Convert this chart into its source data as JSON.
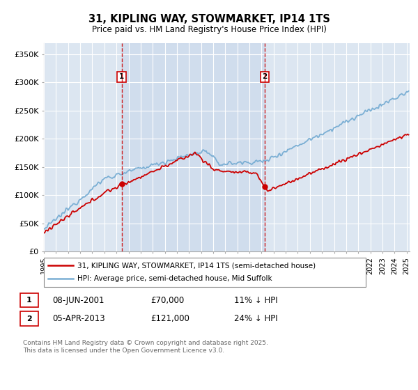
{
  "title": "31, KIPLING WAY, STOWMARKET, IP14 1TS",
  "subtitle": "Price paid vs. HM Land Registry's House Price Index (HPI)",
  "legend_line1": "31, KIPLING WAY, STOWMARKET, IP14 1TS (semi-detached house)",
  "legend_line2": "HPI: Average price, semi-detached house, Mid Suffolk",
  "footer": "Contains HM Land Registry data © Crown copyright and database right 2025.\nThis data is licensed under the Open Government Licence v3.0.",
  "annotation1": {
    "label": "1",
    "date": "08-JUN-2001",
    "price": "£70,000",
    "hpi": "11% ↓ HPI"
  },
  "annotation2": {
    "label": "2",
    "date": "05-APR-2013",
    "price": "£121,000",
    "hpi": "24% ↓ HPI"
  },
  "red_color": "#cc0000",
  "blue_color": "#7bafd4",
  "shade_color": "#dce6f1",
  "background_color": "#dce6f1",
  "vline_color": "#cc0000",
  "ylim": [
    0,
    370000
  ],
  "yticks": [
    0,
    50000,
    100000,
    150000,
    200000,
    250000,
    300000,
    350000
  ],
  "ytick_labels": [
    "£0",
    "£50K",
    "£100K",
    "£150K",
    "£200K",
    "£250K",
    "£300K",
    "£350K"
  ]
}
